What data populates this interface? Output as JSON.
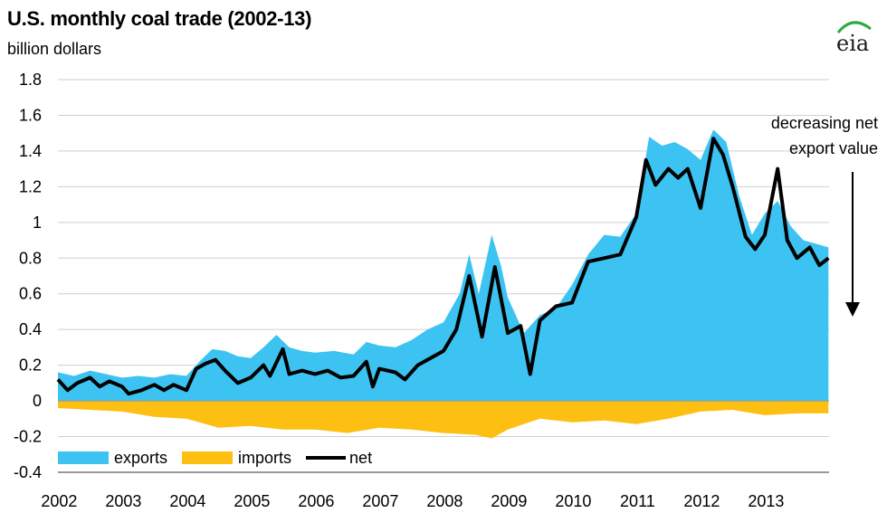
{
  "header": {
    "title": "U.S. monthly coal trade (2002-13)",
    "subtitle": "billion dollars",
    "logo_text": "eia"
  },
  "annotation": {
    "line1": "decreasing net",
    "line2": "export value"
  },
  "colors": {
    "exports": "#3cc3f2",
    "imports": "#fcbf12",
    "net": "#000000",
    "grid": "#cfcfcf",
    "logo_arc": "#2ea845"
  },
  "chart_data": {
    "type": "area",
    "title": "U.S. monthly coal trade (2002-13)",
    "ylabel": "billion dollars",
    "xlabel": "",
    "ylim": [
      -0.4,
      1.8
    ],
    "yticks": [
      "1.8",
      "1.6",
      "1.4",
      "1.2",
      "1",
      "0.8",
      "0.6",
      "0.4",
      "0.2",
      "0",
      "-0.2",
      "-0.4"
    ],
    "xticks": [
      "2002",
      "2003",
      "2004",
      "2005",
      "2006",
      "2007",
      "2008",
      "2009",
      "2010",
      "2011",
      "2012",
      "2013"
    ],
    "x_unit": "year (monthly observations, Jan 2002 to Dec 2013)",
    "grid": true,
    "legend_position": "bottom-left",
    "series": [
      {
        "name": "exports",
        "points": [
          [
            2002.0,
            0.16
          ],
          [
            2002.25,
            0.14
          ],
          [
            2002.5,
            0.17
          ],
          [
            2002.75,
            0.15
          ],
          [
            2003.0,
            0.13
          ],
          [
            2003.25,
            0.14
          ],
          [
            2003.5,
            0.13
          ],
          [
            2003.75,
            0.15
          ],
          [
            2004.0,
            0.14
          ],
          [
            2004.2,
            0.22
          ],
          [
            2004.4,
            0.29
          ],
          [
            2004.6,
            0.28
          ],
          [
            2004.8,
            0.25
          ],
          [
            2005.0,
            0.24
          ],
          [
            2005.2,
            0.3
          ],
          [
            2005.4,
            0.37
          ],
          [
            2005.6,
            0.3
          ],
          [
            2005.8,
            0.28
          ],
          [
            2006.0,
            0.27
          ],
          [
            2006.3,
            0.28
          ],
          [
            2006.6,
            0.26
          ],
          [
            2006.8,
            0.33
          ],
          [
            2007.0,
            0.31
          ],
          [
            2007.25,
            0.3
          ],
          [
            2007.5,
            0.34
          ],
          [
            2007.75,
            0.4
          ],
          [
            2008.0,
            0.44
          ],
          [
            2008.25,
            0.6
          ],
          [
            2008.4,
            0.82
          ],
          [
            2008.55,
            0.6
          ],
          [
            2008.75,
            0.93
          ],
          [
            2008.9,
            0.75
          ],
          [
            2009.0,
            0.58
          ],
          [
            2009.25,
            0.38
          ],
          [
            2009.5,
            0.48
          ],
          [
            2009.75,
            0.52
          ],
          [
            2010.0,
            0.65
          ],
          [
            2010.25,
            0.82
          ],
          [
            2010.5,
            0.93
          ],
          [
            2010.75,
            0.92
          ],
          [
            2011.0,
            1.05
          ],
          [
            2011.2,
            1.48
          ],
          [
            2011.4,
            1.43
          ],
          [
            2011.6,
            1.45
          ],
          [
            2011.8,
            1.41
          ],
          [
            2012.0,
            1.35
          ],
          [
            2012.2,
            1.52
          ],
          [
            2012.4,
            1.45
          ],
          [
            2012.6,
            1.15
          ],
          [
            2012.8,
            0.93
          ],
          [
            2013.0,
            1.05
          ],
          [
            2013.2,
            1.12
          ],
          [
            2013.4,
            0.98
          ],
          [
            2013.6,
            0.9
          ],
          [
            2013.8,
            0.88
          ],
          [
            2013.99,
            0.86
          ]
        ]
      },
      {
        "name": "imports",
        "points": [
          [
            2002.0,
            -0.04
          ],
          [
            2002.5,
            -0.05
          ],
          [
            2003.0,
            -0.06
          ],
          [
            2003.5,
            -0.09
          ],
          [
            2004.0,
            -0.1
          ],
          [
            2004.5,
            -0.15
          ],
          [
            2005.0,
            -0.14
          ],
          [
            2005.5,
            -0.16
          ],
          [
            2006.0,
            -0.16
          ],
          [
            2006.5,
            -0.18
          ],
          [
            2007.0,
            -0.15
          ],
          [
            2007.5,
            -0.16
          ],
          [
            2008.0,
            -0.18
          ],
          [
            2008.5,
            -0.19
          ],
          [
            2008.75,
            -0.21
          ],
          [
            2009.0,
            -0.16
          ],
          [
            2009.5,
            -0.1
          ],
          [
            2010.0,
            -0.12
          ],
          [
            2010.5,
            -0.11
          ],
          [
            2011.0,
            -0.13
          ],
          [
            2011.5,
            -0.1
          ],
          [
            2012.0,
            -0.06
          ],
          [
            2012.5,
            -0.05
          ],
          [
            2013.0,
            -0.08
          ],
          [
            2013.5,
            -0.07
          ],
          [
            2013.99,
            -0.07
          ]
        ]
      },
      {
        "name": "net",
        "points": [
          [
            2002.0,
            0.12
          ],
          [
            2002.15,
            0.06
          ],
          [
            2002.3,
            0.1
          ],
          [
            2002.5,
            0.13
          ],
          [
            2002.65,
            0.08
          ],
          [
            2002.8,
            0.11
          ],
          [
            2003.0,
            0.08
          ],
          [
            2003.1,
            0.04
          ],
          [
            2003.3,
            0.06
          ],
          [
            2003.5,
            0.09
          ],
          [
            2003.65,
            0.06
          ],
          [
            2003.8,
            0.09
          ],
          [
            2004.0,
            0.06
          ],
          [
            2004.15,
            0.18
          ],
          [
            2004.3,
            0.21
          ],
          [
            2004.45,
            0.23
          ],
          [
            2004.6,
            0.17
          ],
          [
            2004.8,
            0.1
          ],
          [
            2005.0,
            0.13
          ],
          [
            2005.2,
            0.2
          ],
          [
            2005.3,
            0.14
          ],
          [
            2005.5,
            0.29
          ],
          [
            2005.6,
            0.15
          ],
          [
            2005.8,
            0.17
          ],
          [
            2006.0,
            0.15
          ],
          [
            2006.2,
            0.17
          ],
          [
            2006.4,
            0.13
          ],
          [
            2006.6,
            0.14
          ],
          [
            2006.8,
            0.22
          ],
          [
            2006.9,
            0.08
          ],
          [
            2007.0,
            0.18
          ],
          [
            2007.25,
            0.16
          ],
          [
            2007.4,
            0.12
          ],
          [
            2007.6,
            0.2
          ],
          [
            2007.8,
            0.24
          ],
          [
            2008.0,
            0.28
          ],
          [
            2008.2,
            0.4
          ],
          [
            2008.4,
            0.7
          ],
          [
            2008.6,
            0.36
          ],
          [
            2008.8,
            0.75
          ],
          [
            2009.0,
            0.38
          ],
          [
            2009.2,
            0.42
          ],
          [
            2009.35,
            0.15
          ],
          [
            2009.5,
            0.45
          ],
          [
            2009.75,
            0.53
          ],
          [
            2010.0,
            0.55
          ],
          [
            2010.25,
            0.78
          ],
          [
            2010.5,
            0.8
          ],
          [
            2010.75,
            0.82
          ],
          [
            2011.0,
            1.03
          ],
          [
            2011.15,
            1.35
          ],
          [
            2011.3,
            1.21
          ],
          [
            2011.5,
            1.3
          ],
          [
            2011.65,
            1.25
          ],
          [
            2011.8,
            1.3
          ],
          [
            2012.0,
            1.08
          ],
          [
            2012.2,
            1.47
          ],
          [
            2012.35,
            1.38
          ],
          [
            2012.5,
            1.2
          ],
          [
            2012.7,
            0.92
          ],
          [
            2012.85,
            0.85
          ],
          [
            2013.0,
            0.93
          ],
          [
            2013.2,
            1.3
          ],
          [
            2013.35,
            0.9
          ],
          [
            2013.5,
            0.8
          ],
          [
            2013.7,
            0.86
          ],
          [
            2013.85,
            0.76
          ],
          [
            2013.99,
            0.8
          ]
        ]
      }
    ]
  }
}
